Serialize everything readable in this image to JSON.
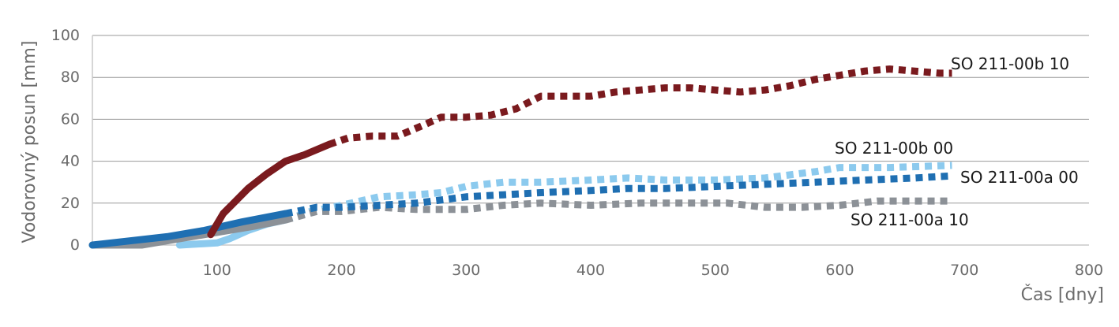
{
  "chart_data": {
    "type": "line",
    "xlabel": "Čas [dny]",
    "ylabel": "Vodorovný posun [mm]",
    "xlim": [
      0,
      800
    ],
    "ylim": [
      0,
      100
    ],
    "x_ticks": [
      "100",
      "200",
      "300",
      "400",
      "500",
      "600",
      "700",
      "800"
    ],
    "y_ticks": [
      "0",
      "20",
      "40",
      "60",
      "80",
      "100"
    ],
    "grid": "horizontal",
    "legend": "labels at line ends",
    "series": [
      {
        "name": "SO 211-00b 10",
        "color": "#7a1a1e",
        "solid": [
          [
            95,
            5
          ],
          [
            105,
            15
          ],
          [
            125,
            27
          ],
          [
            140,
            34
          ],
          [
            155,
            40
          ],
          [
            170,
            43
          ],
          [
            190,
            48
          ]
        ],
        "dotted": [
          [
            190,
            48
          ],
          [
            205,
            51
          ],
          [
            225,
            52
          ],
          [
            245,
            52
          ],
          [
            265,
            57
          ],
          [
            280,
            61
          ],
          [
            300,
            61
          ],
          [
            320,
            62
          ],
          [
            340,
            65
          ],
          [
            360,
            71
          ],
          [
            380,
            71
          ],
          [
            400,
            71
          ],
          [
            420,
            73
          ],
          [
            440,
            74
          ],
          [
            460,
            75
          ],
          [
            480,
            75
          ],
          [
            500,
            74
          ],
          [
            520,
            73
          ],
          [
            540,
            74
          ],
          [
            560,
            76
          ],
          [
            580,
            79
          ],
          [
            600,
            81
          ],
          [
            620,
            83
          ],
          [
            640,
            84
          ],
          [
            660,
            83
          ],
          [
            680,
            82
          ],
          [
            690,
            82
          ]
        ]
      },
      {
        "name": "SO 211-00b 00",
        "color": "#8ccaee",
        "solid": [
          [
            70,
            0
          ],
          [
            100,
            1
          ],
          [
            110,
            3
          ],
          [
            125,
            7
          ],
          [
            140,
            10
          ],
          [
            155,
            12
          ]
        ],
        "dotted": [
          [
            155,
            12
          ],
          [
            175,
            16
          ],
          [
            200,
            19
          ],
          [
            230,
            23
          ],
          [
            260,
            24
          ],
          [
            280,
            25
          ],
          [
            300,
            28
          ],
          [
            330,
            30
          ],
          [
            360,
            30
          ],
          [
            400,
            31
          ],
          [
            430,
            32
          ],
          [
            460,
            31
          ],
          [
            500,
            31
          ],
          [
            540,
            32
          ],
          [
            580,
            35
          ],
          [
            600,
            37
          ],
          [
            640,
            37
          ],
          [
            690,
            38
          ]
        ]
      },
      {
        "name": "SO 211-00a 00",
        "color": "#1f6fb2",
        "solid": [
          [
            0,
            0
          ],
          [
            30,
            2
          ],
          [
            60,
            4
          ],
          [
            90,
            7
          ],
          [
            120,
            11
          ],
          [
            155,
            15
          ]
        ],
        "dotted": [
          [
            155,
            15
          ],
          [
            180,
            18
          ],
          [
            200,
            18
          ],
          [
            230,
            19
          ],
          [
            260,
            20
          ],
          [
            300,
            23
          ],
          [
            330,
            24
          ],
          [
            360,
            25
          ],
          [
            400,
            26
          ],
          [
            430,
            27
          ],
          [
            460,
            27
          ],
          [
            500,
            28
          ],
          [
            540,
            29
          ],
          [
            580,
            30
          ],
          [
            620,
            31
          ],
          [
            660,
            32
          ],
          [
            690,
            33
          ]
        ]
      },
      {
        "name": "SO 211-00a 10",
        "color": "#8c9197",
        "solid": [
          [
            0,
            0
          ],
          [
            40,
            0
          ],
          [
            70,
            3
          ],
          [
            100,
            6
          ],
          [
            130,
            9
          ],
          [
            155,
            12
          ]
        ],
        "dotted": [
          [
            155,
            12
          ],
          [
            180,
            16
          ],
          [
            200,
            16
          ],
          [
            230,
            18
          ],
          [
            260,
            17
          ],
          [
            300,
            17
          ],
          [
            330,
            19
          ],
          [
            360,
            20
          ],
          [
            400,
            19
          ],
          [
            440,
            20
          ],
          [
            480,
            20
          ],
          [
            510,
            20
          ],
          [
            540,
            18
          ],
          [
            570,
            18
          ],
          [
            600,
            19
          ],
          [
            630,
            21
          ],
          [
            660,
            21
          ],
          [
            690,
            21
          ]
        ]
      }
    ]
  },
  "labels": {
    "b10": "SO 211-00b 10",
    "b00": "SO 211-00b 00",
    "a00": "SO 211-00a 00",
    "a10": "SO 211-00a 10"
  }
}
